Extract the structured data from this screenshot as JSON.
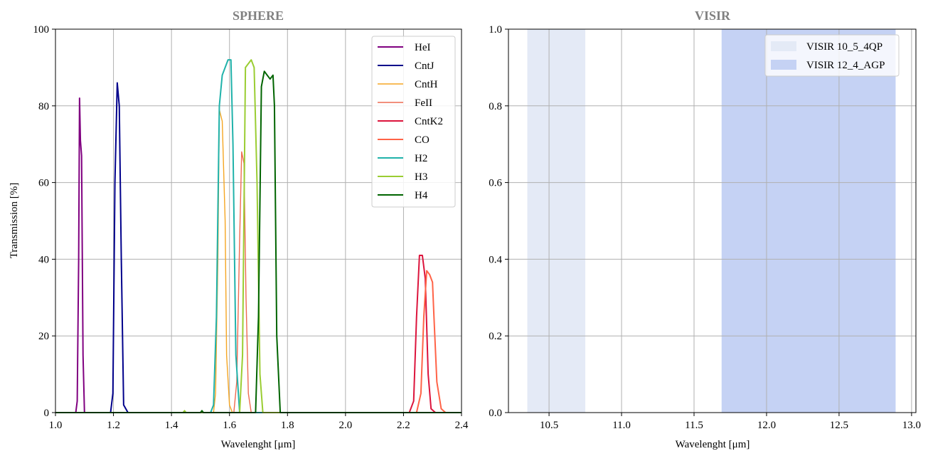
{
  "chart_data": [
    {
      "type": "line",
      "title": "SPHERE",
      "xlabel": "Wavelenght [μm]",
      "ylabel": "Transmission [%]",
      "xlim": [
        1.0,
        2.4
      ],
      "ylim": [
        0,
        100
      ],
      "xticks": [
        1.0,
        1.2,
        1.4,
        1.6,
        1.8,
        2.0,
        2.2,
        2.4
      ],
      "xtick_labels": [
        "1.0",
        "1.2",
        "1.4",
        "1.6",
        "1.8",
        "2.0",
        "2.2",
        "2.4"
      ],
      "yticks": [
        0,
        20,
        40,
        60,
        80,
        100
      ],
      "ytick_labels": [
        "0",
        "20",
        "40",
        "60",
        "80",
        "100"
      ],
      "grid": true,
      "legend_position": "top-right",
      "series": [
        {
          "name": "HeI",
          "color": "#800080",
          "width": 2,
          "x": [
            1.0,
            1.07,
            1.075,
            1.08,
            1.083,
            1.086,
            1.09,
            1.095,
            1.1,
            1.11,
            2.4
          ],
          "y": [
            0,
            0,
            3,
            40,
            82,
            71,
            67,
            15,
            0,
            0,
            0
          ]
        },
        {
          "name": "CntJ",
          "color": "#00008b",
          "width": 2,
          "x": [
            1.0,
            1.19,
            1.198,
            1.205,
            1.213,
            1.22,
            1.227,
            1.235,
            1.25,
            2.4
          ],
          "y": [
            0,
            0,
            5,
            60,
            86,
            80,
            40,
            2,
            0,
            0
          ]
        },
        {
          "name": "CntH",
          "color": "#f5a623",
          "width": 1.4,
          "x": [
            1.0,
            1.545,
            1.552,
            1.56,
            1.565,
            1.575,
            1.585,
            1.59,
            1.6,
            1.61,
            2.4
          ],
          "y": [
            0,
            0,
            5,
            40,
            79,
            76,
            50,
            15,
            2,
            0,
            0
          ]
        },
        {
          "name": "FeII",
          "color": "#ee6a50",
          "width": 1.4,
          "x": [
            1.0,
            1.615,
            1.625,
            1.635,
            1.642,
            1.65,
            1.657,
            1.665,
            1.675,
            2.4
          ],
          "y": [
            0,
            0,
            8,
            45,
            68,
            65,
            30,
            5,
            0,
            0
          ]
        },
        {
          "name": "CntK2",
          "color": "#dc143c",
          "width": 2,
          "x": [
            1.0,
            2.22,
            2.235,
            2.245,
            2.255,
            2.265,
            2.275,
            2.285,
            2.295,
            2.31,
            2.4
          ],
          "y": [
            0,
            0,
            3,
            25,
            41,
            41,
            35,
            10,
            1,
            0,
            0
          ]
        },
        {
          "name": "CO",
          "color": "#ff6347",
          "width": 2,
          "x": [
            1.0,
            2.245,
            2.26,
            2.27,
            2.28,
            2.29,
            2.3,
            2.305,
            2.315,
            2.33,
            2.345,
            2.4
          ],
          "y": [
            0,
            0,
            5,
            25,
            37,
            36,
            34,
            25,
            8,
            1,
            0,
            0
          ]
        },
        {
          "name": "H2",
          "color": "#20b2aa",
          "width": 2,
          "x": [
            1.0,
            1.535,
            1.545,
            1.555,
            1.565,
            1.575,
            1.585,
            1.595,
            1.605,
            1.612,
            1.622,
            1.635,
            2.4
          ],
          "y": [
            0,
            0,
            2,
            25,
            80,
            88,
            90,
            92,
            92,
            70,
            15,
            0,
            0
          ]
        },
        {
          "name": "H3",
          "color": "#9acd32",
          "width": 2,
          "x": [
            1.0,
            1.44,
            1.445,
            1.45,
            1.635,
            1.645,
            1.655,
            1.665,
            1.675,
            1.685,
            1.695,
            1.705,
            1.715,
            2.4
          ],
          "y": [
            0,
            0,
            0.5,
            0,
            0,
            15,
            90,
            91,
            92,
            90,
            60,
            10,
            0,
            0
          ]
        },
        {
          "name": "H4",
          "color": "#006400",
          "width": 2,
          "x": [
            1.0,
            1.5,
            1.505,
            1.51,
            1.69,
            1.7,
            1.71,
            1.72,
            1.73,
            1.74,
            1.75,
            1.755,
            1.763,
            1.775,
            2.4
          ],
          "y": [
            0,
            0,
            0.5,
            0,
            0,
            25,
            85,
            89,
            88,
            87,
            88,
            80,
            20,
            0,
            0
          ]
        }
      ]
    },
    {
      "type": "area",
      "title": "VISIR",
      "xlabel": "Wavelenght [μm]",
      "ylabel": "",
      "xlim": [
        10.22,
        13.03
      ],
      "ylim": [
        0,
        1
      ],
      "xticks": [
        10.5,
        11.0,
        11.5,
        12.0,
        12.5,
        13.0
      ],
      "xtick_labels": [
        "10.5",
        "11.0",
        "11.5",
        "12.0",
        "12.5",
        "13.0"
      ],
      "yticks": [
        0,
        0.2,
        0.4,
        0.6,
        0.8,
        1.0
      ],
      "ytick_labels": [
        "0.0",
        "0.2",
        "0.4",
        "0.6",
        "0.8",
        "1.0"
      ],
      "grid": true,
      "legend_position": "top-right",
      "series": [
        {
          "name": "VISIR 10_5_4QP",
          "color": "#e4eaf6",
          "x_range": [
            10.35,
            10.75
          ]
        },
        {
          "name": "VISIR 12_4_AGP",
          "color": "#c5d2f4",
          "x_range": [
            11.69,
            12.89
          ]
        }
      ]
    }
  ]
}
